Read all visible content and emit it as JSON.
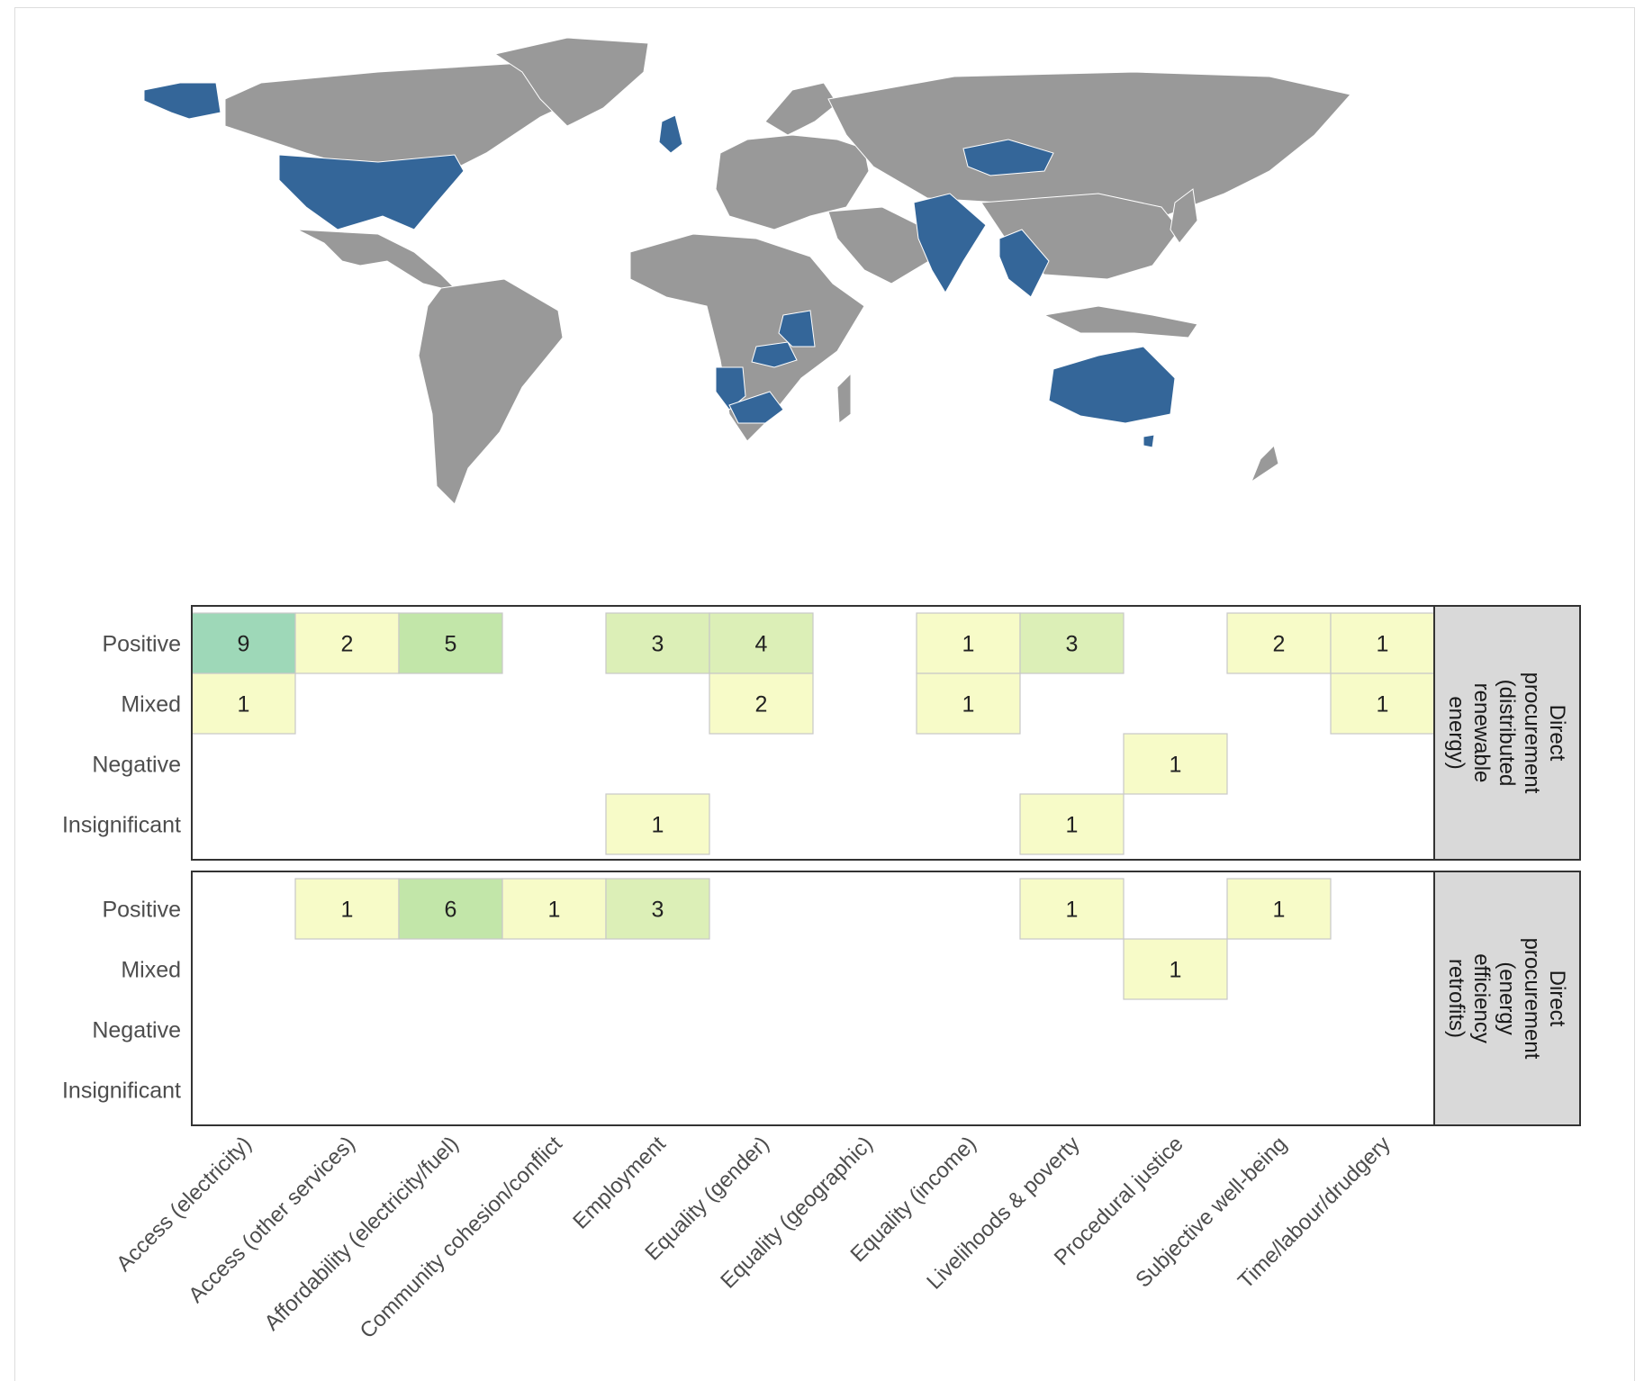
{
  "colors": {
    "map_land": "#999999",
    "map_highlight": "#346699",
    "map_border": "#ffffff",
    "panel_border": "#333333",
    "strip_fill": "#d9d9d9",
    "cell_stroke": "#c8c8c8",
    "scale": [
      "#f7fbc8",
      "#dcefb7",
      "#c2e6a9",
      "#9ed8b8"
    ]
  },
  "map": {
    "highlighted_countries": [
      "United States",
      "United Kingdom",
      "Mongolia",
      "India",
      "Thailand",
      "Cambodia",
      "Laos",
      "Tanzania",
      "Zambia",
      "Malawi",
      "Namibia",
      "South Africa",
      "Australia"
    ]
  },
  "chart_data": {
    "type": "heatmap",
    "categories": [
      "Access (electricity)",
      "Access (other services)",
      "Affordability (electricity/fuel)",
      "Community cohesion/conflict",
      "Employment",
      "Equality (gender)",
      "Equality (geographic)",
      "Equality (income)",
      "Livelihoods & poverty",
      "Procedural justice",
      "Subjective well-being",
      "Time/labour/drudgery"
    ],
    "rows": [
      "Positive",
      "Mixed",
      "Negative",
      "Insignificant"
    ],
    "facets": [
      {
        "label_lines": [
          "Direct",
          "procurement",
          "(distributed",
          "renewable",
          "energy)"
        ],
        "cells": [
          {
            "row": "Positive",
            "col": "Access (electricity)",
            "value": 9
          },
          {
            "row": "Positive",
            "col": "Access (other services)",
            "value": 2
          },
          {
            "row": "Positive",
            "col": "Affordability (electricity/fuel)",
            "value": 5
          },
          {
            "row": "Positive",
            "col": "Employment",
            "value": 3
          },
          {
            "row": "Positive",
            "col": "Equality (gender)",
            "value": 4
          },
          {
            "row": "Positive",
            "col": "Equality (income)",
            "value": 1
          },
          {
            "row": "Positive",
            "col": "Livelihoods & poverty",
            "value": 3
          },
          {
            "row": "Positive",
            "col": "Subjective well-being",
            "value": 2
          },
          {
            "row": "Positive",
            "col": "Time/labour/drudgery",
            "value": 1
          },
          {
            "row": "Mixed",
            "col": "Access (electricity)",
            "value": 1
          },
          {
            "row": "Mixed",
            "col": "Equality (gender)",
            "value": 2
          },
          {
            "row": "Mixed",
            "col": "Equality (income)",
            "value": 1
          },
          {
            "row": "Mixed",
            "col": "Time/labour/drudgery",
            "value": 1
          },
          {
            "row": "Negative",
            "col": "Procedural justice",
            "value": 1
          },
          {
            "row": "Insignificant",
            "col": "Employment",
            "value": 1
          },
          {
            "row": "Insignificant",
            "col": "Livelihoods & poverty",
            "value": 1
          }
        ]
      },
      {
        "label_lines": [
          "Direct",
          "procurement",
          "(energy",
          "efficiency",
          "retrofits)"
        ],
        "cells": [
          {
            "row": "Positive",
            "col": "Access (other services)",
            "value": 1
          },
          {
            "row": "Positive",
            "col": "Affordability (electricity/fuel)",
            "value": 6
          },
          {
            "row": "Positive",
            "col": "Community cohesion/conflict",
            "value": 1
          },
          {
            "row": "Positive",
            "col": "Employment",
            "value": 3
          },
          {
            "row": "Positive",
            "col": "Livelihoods & poverty",
            "value": 1
          },
          {
            "row": "Positive",
            "col": "Subjective well-being",
            "value": 1
          },
          {
            "row": "Mixed",
            "col": "Procedural justice",
            "value": 1
          }
        ]
      }
    ]
  }
}
